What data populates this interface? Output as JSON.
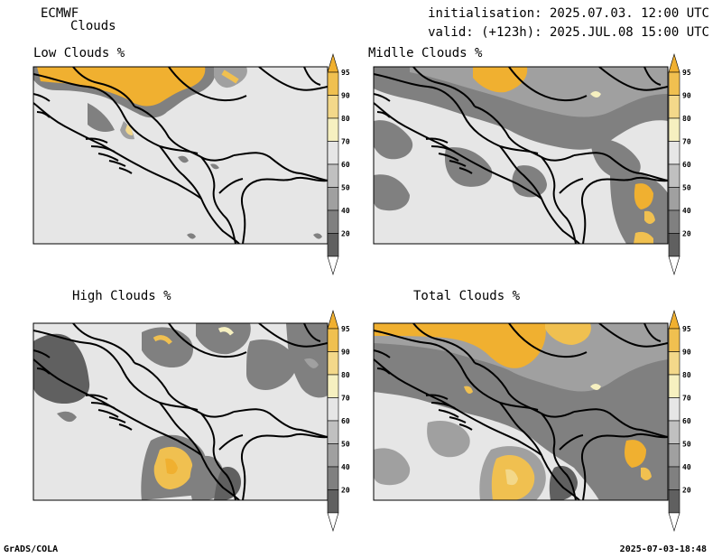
{
  "header": {
    "model": "ECMWF",
    "product": "Clouds",
    "init": "initialisation: 2025.07.03. 12:00 UTC",
    "valid": "valid: (+123h): 2025.JUL.08 15:00 UTC"
  },
  "panels": [
    {
      "id": "low",
      "title": "Low Clouds %"
    },
    {
      "id": "middle",
      "title": "Midlle Clouds %"
    },
    {
      "id": "high",
      "title": "High Clouds %"
    },
    {
      "id": "total",
      "title": "Total Clouds %"
    }
  ],
  "colorbar": {
    "ticks": [
      "95",
      "90",
      "80",
      "70",
      "60",
      "50",
      "40",
      "20"
    ],
    "colors": [
      "#f0b030",
      "#f0c050",
      "#f3d88a",
      "#f6f0c0",
      "#e6e6e6",
      "#c0c0c0",
      "#a0a0a0",
      "#808080",
      "#606060"
    ]
  },
  "footer": {
    "left": "GrADS/COLA",
    "right": "2025-07-03-18:48"
  }
}
